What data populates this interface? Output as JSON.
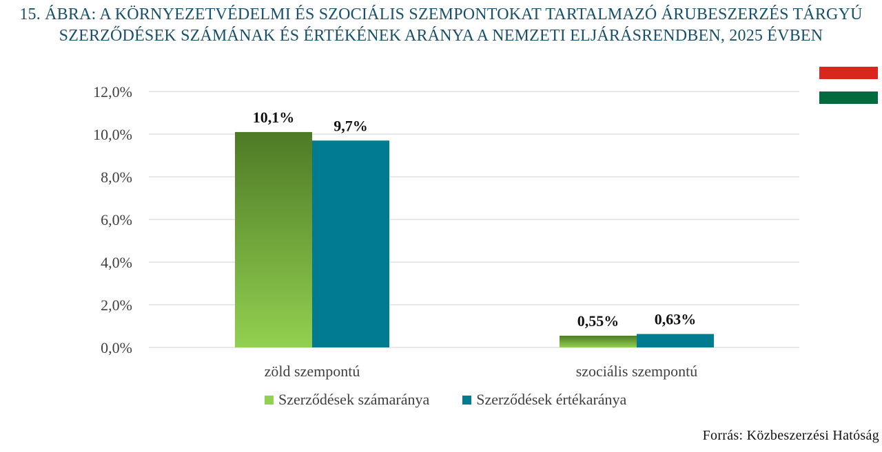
{
  "chart_data": {
    "type": "bar",
    "title": "15. ÁBRA: A KÖRNYEZETVÉDELMI ÉS SZOCIÁLIS SZEMPONTOKAT TARTALMAZÓ ÁRUBESZERZÉS TÁRGYÚ SZERZŐDÉSEK SZÁMÁNAK ÉS ÉRTÉKÉNEK ARÁNYA A NEMZETI ELJÁRÁSRENDBEN, 2025 ÉVBEN",
    "categories": [
      "zöld szempontú",
      "szociális szempontú"
    ],
    "series": [
      {
        "name": "Szerződések számaránya",
        "values": [
          10.1,
          0.55
        ],
        "labels": [
          "10,1%",
          "0,55%"
        ],
        "color_top": "#4e7a26",
        "color_bottom": "#92d050"
      },
      {
        "name": "Szerződések értékaránya",
        "values": [
          9.7,
          0.63
        ],
        "labels": [
          "9,7%",
          "0,63%"
        ],
        "color": "#007b8f"
      }
    ],
    "ylim": [
      0,
      12
    ],
    "yticks": [
      0,
      2,
      4,
      6,
      8,
      10,
      12
    ],
    "ytick_labels": [
      "0,0%",
      "2,0%",
      "4,0%",
      "6,0%",
      "8,0%",
      "10,0%",
      "12,0%"
    ],
    "grid": true,
    "legend_position": "bottom",
    "xlabel": "",
    "ylabel": ""
  },
  "source": "Forrás: Közbeszerzési Hatóság",
  "flag": {
    "colors": [
      "#d9271e",
      "#ffffff",
      "#006b3f"
    ]
  },
  "colors": {
    "title": "#17506b",
    "gridline": "#d9d9d9",
    "text": "#3f3f3f"
  }
}
